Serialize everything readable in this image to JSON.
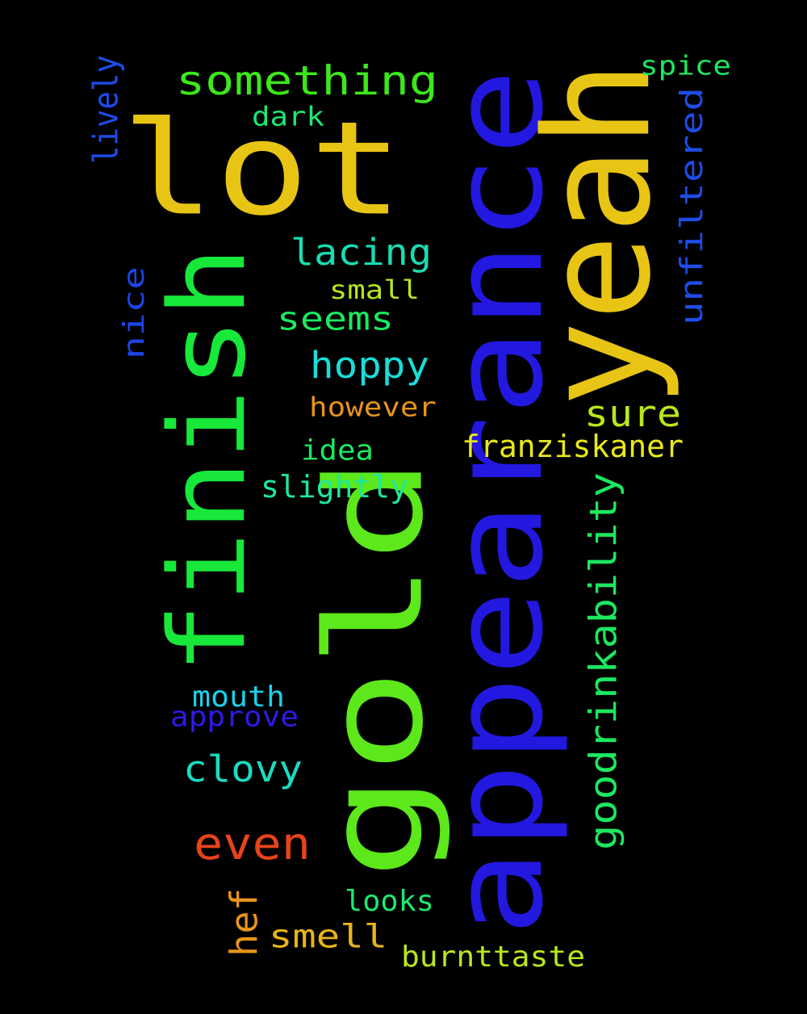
{
  "words": [
    {
      "id": "gold",
      "text": "gold",
      "color": "#5ce81a",
      "rotated": true
    },
    {
      "id": "appearance",
      "text": "appearance",
      "color": "#2318e0",
      "rotated": true
    },
    {
      "id": "lot",
      "text": "lot",
      "color": "#e8c515",
      "rotated": false
    },
    {
      "id": "yeah",
      "text": "yeah",
      "color": "#e8c515",
      "rotated": true
    },
    {
      "id": "finish",
      "text": "finish",
      "color": "#17e83a",
      "rotated": true
    },
    {
      "id": "something",
      "text": "something",
      "color": "#3ce81a",
      "rotated": false
    },
    {
      "id": "lacing",
      "text": "lacing",
      "color": "#19dcb2",
      "rotated": false
    },
    {
      "id": "seems",
      "text": "seems",
      "color": "#1ce860",
      "rotated": false
    },
    {
      "id": "hoppy",
      "text": "hoppy",
      "color": "#1adcd8",
      "rotated": false
    },
    {
      "id": "sure",
      "text": "sure",
      "color": "#b9e81a",
      "rotated": false
    },
    {
      "id": "goodrinkability",
      "text": "goodrinkability",
      "color": "#1ce860",
      "rotated": true
    },
    {
      "id": "unfiltered",
      "text": "unfiltered",
      "color": "#1e4ce8",
      "rotated": true
    },
    {
      "id": "clovy",
      "text": "clovy",
      "color": "#1adcc0",
      "rotated": false
    },
    {
      "id": "even",
      "text": "even",
      "color": "#e8431a",
      "rotated": false
    },
    {
      "id": "smell",
      "text": "smell",
      "color": "#e8b41a",
      "rotated": false
    },
    {
      "id": "hef",
      "text": "hef",
      "color": "#e8941a",
      "rotated": true
    },
    {
      "id": "nice",
      "text": "nice",
      "color": "#1e44e8",
      "rotated": true
    },
    {
      "id": "lively",
      "text": "lively",
      "color": "#1e4ce8",
      "rotated": true
    },
    {
      "id": "spice",
      "text": "spice",
      "color": "#1ce860",
      "rotated": false
    },
    {
      "id": "dark",
      "text": "dark",
      "color": "#1ce870",
      "rotated": false
    },
    {
      "id": "small",
      "text": "small",
      "color": "#b9e81a",
      "rotated": false
    },
    {
      "id": "however",
      "text": "however",
      "color": "#e8941a",
      "rotated": false
    },
    {
      "id": "franziskaner",
      "text": "franziskaner",
      "color": "#e8e81a",
      "rotated": false
    },
    {
      "id": "idea",
      "text": "idea",
      "color": "#1ce860",
      "rotated": false
    },
    {
      "id": "slightly",
      "text": "slightly",
      "color": "#1ce8a0",
      "rotated": false
    },
    {
      "id": "mouth",
      "text": "mouth",
      "color": "#1ad0e8",
      "rotated": false
    },
    {
      "id": "approve",
      "text": "approve",
      "color": "#2e1ae8",
      "rotated": false
    },
    {
      "id": "looks",
      "text": "looks",
      "color": "#1ce870",
      "rotated": false
    },
    {
      "id": "burnttaste",
      "text": "burnttaste",
      "color": "#b9e81a",
      "rotated": false
    }
  ]
}
